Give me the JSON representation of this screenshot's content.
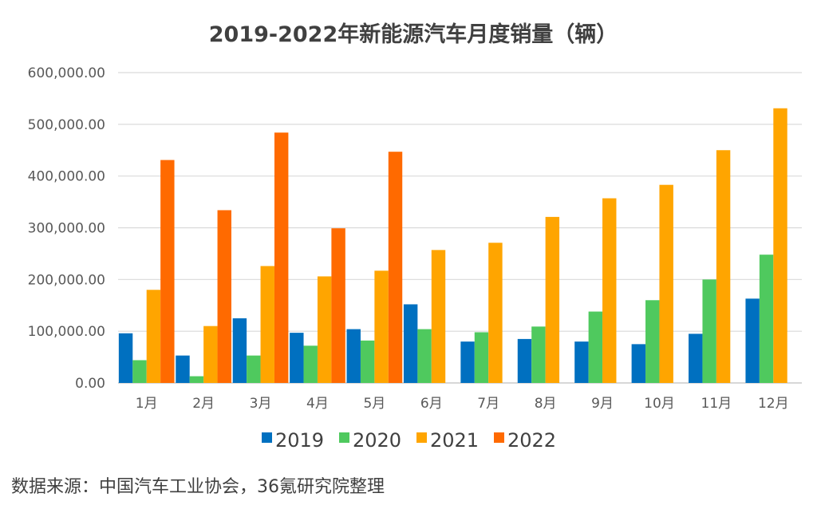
{
  "chart_data": {
    "type": "bar",
    "title": "2019-2022年新能源汽车月度销量（辆）",
    "categories": [
      "1月",
      "2月",
      "3月",
      "4月",
      "5月",
      "6月",
      "7月",
      "8月",
      "9月",
      "10月",
      "11月",
      "12月"
    ],
    "series": [
      {
        "name": "2019",
        "color": "#0070C0",
        "values": [
          96000,
          53000,
          125000,
          97000,
          104000,
          152000,
          80000,
          85000,
          80000,
          75000,
          95000,
          163000
        ]
      },
      {
        "name": "2020",
        "color": "#4FC95E",
        "values": [
          44000,
          13000,
          53000,
          72000,
          82000,
          104000,
          98000,
          109000,
          138000,
          160000,
          200000,
          248000
        ]
      },
      {
        "name": "2021",
        "color": "#FFA500",
        "values": [
          180000,
          110000,
          226000,
          206000,
          217000,
          257000,
          271000,
          321000,
          357000,
          383000,
          450000,
          531000
        ]
      },
      {
        "name": "2022",
        "color": "#FF6A00",
        "values": [
          431000,
          334000,
          484000,
          299000,
          447000,
          null,
          null,
          null,
          null,
          null,
          null,
          null
        ]
      }
    ],
    "ylim": [
      0,
      600000
    ],
    "yticks": [
      0,
      100000,
      200000,
      300000,
      400000,
      500000,
      600000
    ],
    "ytick_labels": [
      "0.00",
      "100,000.00",
      "200,000.00",
      "300,000.00",
      "400,000.00",
      "500,000.00",
      "600,000.00"
    ],
    "grid": true,
    "legend_position": "bottom"
  },
  "source_note": "数据来源：中国汽车工业协会，36氪研究院整理"
}
